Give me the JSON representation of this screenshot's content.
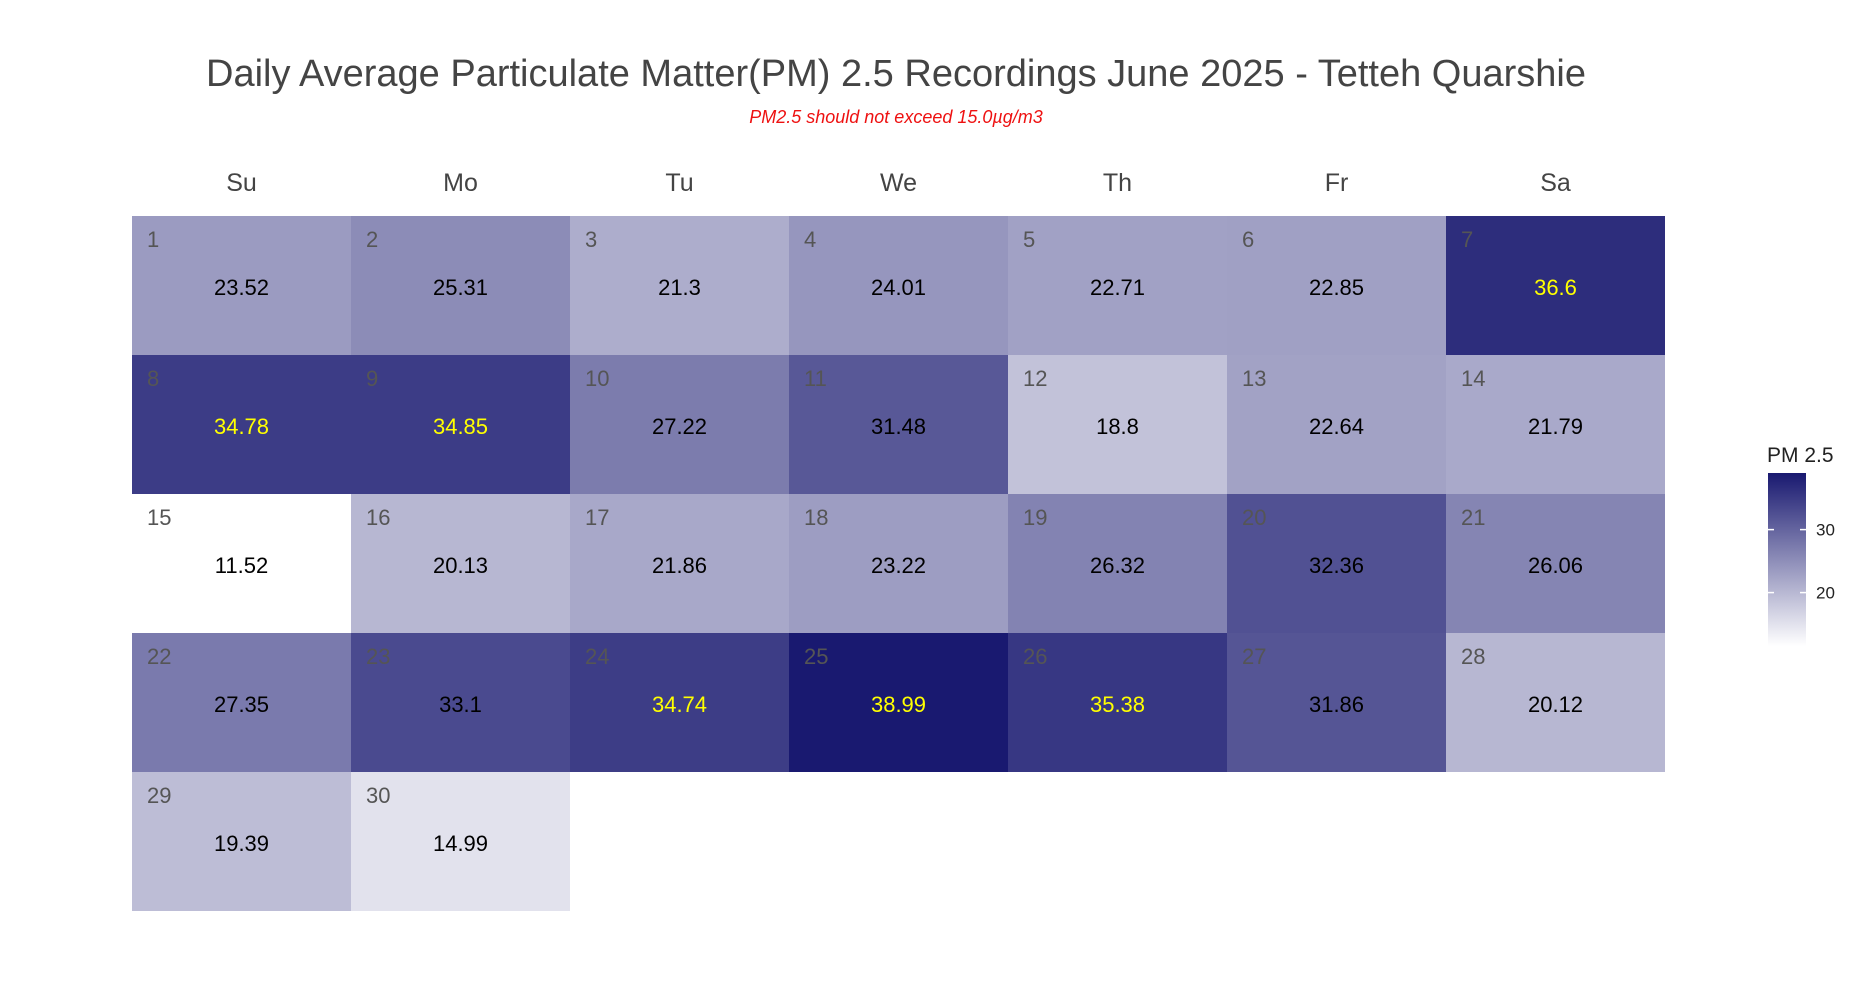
{
  "chart_data": {
    "type": "heatmap",
    "title": "Daily Average Particulate Matter(PM) 2.5 Recordings June 2025 -  Tetteh Quarshie",
    "subtitle": "PM2.5 should not exceed 15.0µg/m3",
    "weekdays": [
      "Su",
      "Mo",
      "Tu",
      "We",
      "Th",
      "Fr",
      "Sa"
    ],
    "month_start_weekday": 0,
    "days": [
      1,
      2,
      3,
      4,
      5,
      6,
      7,
      8,
      9,
      10,
      11,
      12,
      13,
      14,
      15,
      16,
      17,
      18,
      19,
      20,
      21,
      22,
      23,
      24,
      25,
      26,
      27,
      28,
      29,
      30
    ],
    "values": [
      23.52,
      25.31,
      21.3,
      24.01,
      22.71,
      22.85,
      36.6,
      34.78,
      34.85,
      27.22,
      31.48,
      18.8,
      22.64,
      21.79,
      11.52,
      20.13,
      21.86,
      23.22,
      26.32,
      32.36,
      26.06,
      27.35,
      33.1,
      34.74,
      38.99,
      35.38,
      31.86,
      20.12,
      19.39,
      14.99
    ],
    "value_range": [
      11.52,
      38.99
    ],
    "highlight_threshold": 34.5,
    "legend": {
      "title": "PM 2.5",
      "ticks": [
        20,
        30
      ],
      "placement": "right"
    },
    "colors": {
      "low": "#ffffff",
      "high": "#191970",
      "text_default": "#000000",
      "text_high": "#ffff00"
    }
  }
}
